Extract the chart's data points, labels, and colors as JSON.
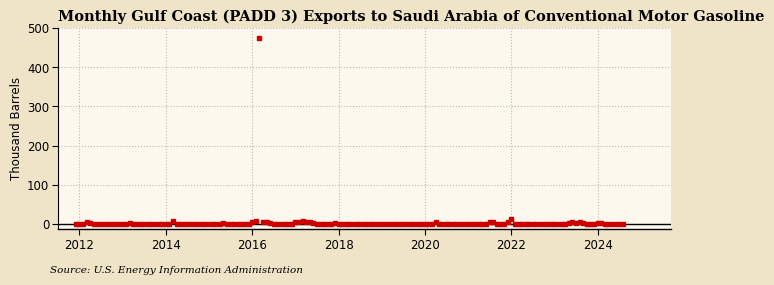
{
  "title": "Monthly Gulf Coast (PADD 3) Exports to Saudi Arabia of Conventional Motor Gasoline",
  "ylabel": "Thousand Barrels",
  "source": "Source: U.S. Energy Information Administration",
  "xlim": [
    2011.5,
    2025.7
  ],
  "ylim": [
    -12,
    500
  ],
  "yticks": [
    0,
    100,
    200,
    300,
    400,
    500
  ],
  "xticks": [
    2012,
    2014,
    2016,
    2018,
    2020,
    2022,
    2024
  ],
  "outer_bg": "#f0e4c8",
  "plot_bg": "#fdf8ee",
  "grid_color": "#bbbbbb",
  "marker_color": "#cc0000",
  "title_fontsize": 10.5,
  "label_fontsize": 8.5,
  "tick_fontsize": 8.5,
  "source_fontsize": 7.5,
  "data_points": [
    [
      2011.917,
      0
    ],
    [
      2012.0,
      0
    ],
    [
      2012.083,
      0
    ],
    [
      2012.167,
      5
    ],
    [
      2012.25,
      3
    ],
    [
      2012.333,
      0
    ],
    [
      2012.417,
      0
    ],
    [
      2012.5,
      0
    ],
    [
      2012.583,
      0
    ],
    [
      2012.667,
      0
    ],
    [
      2012.75,
      0
    ],
    [
      2012.833,
      0
    ],
    [
      2012.917,
      0
    ],
    [
      2013.0,
      0
    ],
    [
      2013.083,
      0
    ],
    [
      2013.167,
      4
    ],
    [
      2013.25,
      0
    ],
    [
      2013.333,
      0
    ],
    [
      2013.417,
      0
    ],
    [
      2013.5,
      0
    ],
    [
      2013.583,
      0
    ],
    [
      2013.667,
      0
    ],
    [
      2013.75,
      0
    ],
    [
      2013.833,
      0
    ],
    [
      2013.917,
      0
    ],
    [
      2014.0,
      0
    ],
    [
      2014.083,
      0
    ],
    [
      2014.167,
      8
    ],
    [
      2014.25,
      0
    ],
    [
      2014.333,
      0
    ],
    [
      2014.417,
      0
    ],
    [
      2014.5,
      0
    ],
    [
      2014.583,
      0
    ],
    [
      2014.667,
      0
    ],
    [
      2014.75,
      0
    ],
    [
      2014.833,
      0
    ],
    [
      2014.917,
      0
    ],
    [
      2015.0,
      0
    ],
    [
      2015.083,
      0
    ],
    [
      2015.167,
      0
    ],
    [
      2015.25,
      0
    ],
    [
      2015.333,
      4
    ],
    [
      2015.417,
      0
    ],
    [
      2015.5,
      0
    ],
    [
      2015.583,
      0
    ],
    [
      2015.667,
      0
    ],
    [
      2015.75,
      0
    ],
    [
      2015.833,
      0
    ],
    [
      2015.917,
      0
    ],
    [
      2016.0,
      6
    ],
    [
      2016.083,
      8
    ],
    [
      2016.167,
      475
    ],
    [
      2016.25,
      6
    ],
    [
      2016.333,
      5
    ],
    [
      2016.417,
      3
    ],
    [
      2016.5,
      0
    ],
    [
      2016.583,
      0
    ],
    [
      2016.667,
      0
    ],
    [
      2016.75,
      0
    ],
    [
      2016.833,
      0
    ],
    [
      2016.917,
      0
    ],
    [
      2017.0,
      5
    ],
    [
      2017.083,
      5
    ],
    [
      2017.167,
      8
    ],
    [
      2017.25,
      6
    ],
    [
      2017.333,
      5
    ],
    [
      2017.417,
      4
    ],
    [
      2017.5,
      0
    ],
    [
      2017.583,
      0
    ],
    [
      2017.667,
      0
    ],
    [
      2017.75,
      0
    ],
    [
      2017.833,
      0
    ],
    [
      2017.917,
      4
    ],
    [
      2018.0,
      0
    ],
    [
      2018.083,
      0
    ],
    [
      2018.167,
      0
    ],
    [
      2018.25,
      0
    ],
    [
      2018.333,
      0
    ],
    [
      2018.417,
      0
    ],
    [
      2018.5,
      0
    ],
    [
      2018.583,
      0
    ],
    [
      2018.667,
      0
    ],
    [
      2018.75,
      0
    ],
    [
      2018.833,
      0
    ],
    [
      2018.917,
      0
    ],
    [
      2019.0,
      0
    ],
    [
      2019.083,
      0
    ],
    [
      2019.167,
      0
    ],
    [
      2019.25,
      0
    ],
    [
      2019.333,
      0
    ],
    [
      2019.417,
      0
    ],
    [
      2019.5,
      0
    ],
    [
      2019.583,
      0
    ],
    [
      2019.667,
      0
    ],
    [
      2019.75,
      0
    ],
    [
      2019.833,
      0
    ],
    [
      2019.917,
      0
    ],
    [
      2020.0,
      0
    ],
    [
      2020.083,
      0
    ],
    [
      2020.167,
      0
    ],
    [
      2020.25,
      5
    ],
    [
      2020.333,
      0
    ],
    [
      2020.417,
      0
    ],
    [
      2020.5,
      0
    ],
    [
      2020.583,
      0
    ],
    [
      2020.667,
      0
    ],
    [
      2020.75,
      0
    ],
    [
      2020.833,
      0
    ],
    [
      2020.917,
      0
    ],
    [
      2021.0,
      0
    ],
    [
      2021.083,
      0
    ],
    [
      2021.167,
      0
    ],
    [
      2021.25,
      0
    ],
    [
      2021.333,
      0
    ],
    [
      2021.417,
      0
    ],
    [
      2021.5,
      5
    ],
    [
      2021.583,
      5
    ],
    [
      2021.667,
      0
    ],
    [
      2021.75,
      0
    ],
    [
      2021.833,
      0
    ],
    [
      2021.917,
      5
    ],
    [
      2022.0,
      12
    ],
    [
      2022.083,
      0
    ],
    [
      2022.167,
      0
    ],
    [
      2022.25,
      0
    ],
    [
      2022.333,
      0
    ],
    [
      2022.417,
      0
    ],
    [
      2022.5,
      0
    ],
    [
      2022.583,
      0
    ],
    [
      2022.667,
      0
    ],
    [
      2022.75,
      0
    ],
    [
      2022.833,
      0
    ],
    [
      2022.917,
      0
    ],
    [
      2023.0,
      0
    ],
    [
      2023.083,
      0
    ],
    [
      2023.167,
      0
    ],
    [
      2023.25,
      0
    ],
    [
      2023.333,
      3
    ],
    [
      2023.417,
      5
    ],
    [
      2023.5,
      4
    ],
    [
      2023.583,
      5
    ],
    [
      2023.667,
      4
    ],
    [
      2023.75,
      0
    ],
    [
      2023.833,
      0
    ],
    [
      2023.917,
      0
    ],
    [
      2024.0,
      3
    ],
    [
      2024.083,
      4
    ],
    [
      2024.167,
      0
    ],
    [
      2024.25,
      0
    ],
    [
      2024.333,
      0
    ],
    [
      2024.417,
      0
    ],
    [
      2024.5,
      0
    ],
    [
      2024.583,
      0
    ]
  ]
}
